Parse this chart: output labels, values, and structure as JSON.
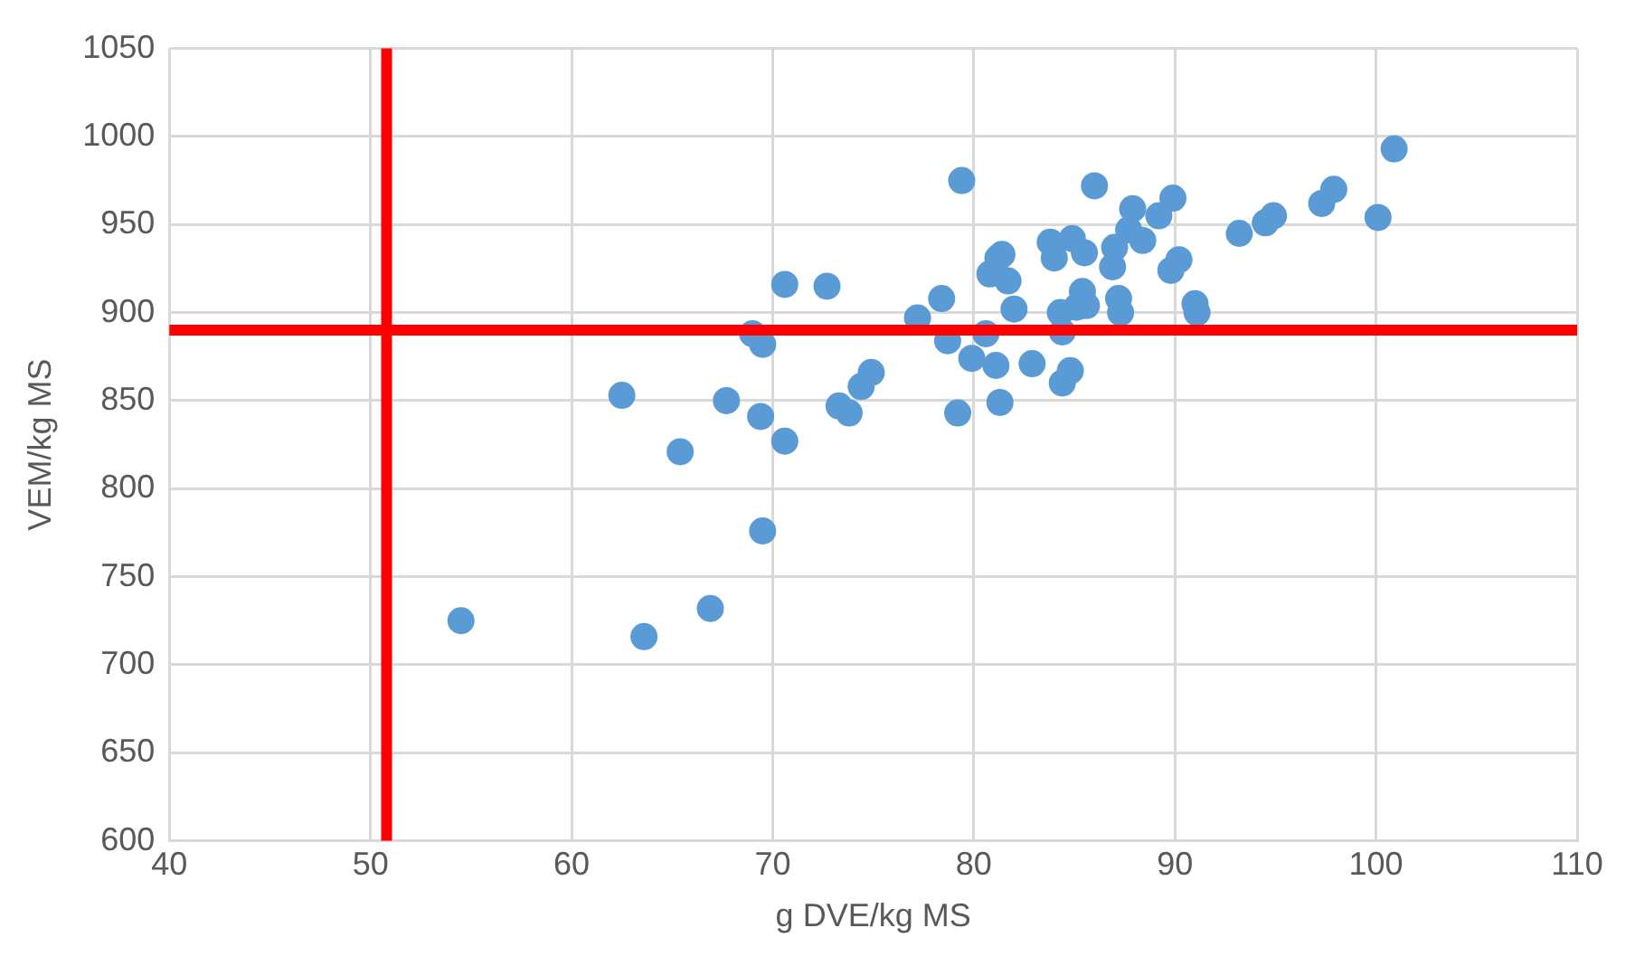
{
  "chart_data": {
    "type": "scatter",
    "xlabel": "g DVE/kg MS",
    "ylabel": "VEM/kg MS",
    "xlim": [
      40,
      110
    ],
    "xticks": [
      40,
      50,
      60,
      70,
      80,
      90,
      100,
      110
    ],
    "ylim": [
      600,
      1050
    ],
    "yticks": [
      600,
      650,
      700,
      750,
      800,
      850,
      900,
      950,
      1000,
      1050
    ],
    "grid": true,
    "legend": false,
    "marker": "circle",
    "ref_lines": [
      {
        "axis": "x",
        "value": 50.8,
        "color": "#ff0000"
      },
      {
        "axis": "y",
        "value": 890,
        "color": "#ff0000"
      }
    ],
    "series": [
      {
        "color": "#5b9bd5",
        "x": [
          54.5,
          63.6,
          66.9,
          62.5,
          65.4,
          67.7,
          69.0,
          69.5,
          69.4,
          69.5,
          70.6,
          70.6,
          72.7,
          73.3,
          73.8,
          74.4,
          74.9,
          77.2,
          78.4,
          78.7,
          79.2,
          79.4,
          79.9,
          80.6,
          80.8,
          81.2,
          81.4,
          81.1,
          81.3,
          81.7,
          82.0,
          82.9,
          83.8,
          84.0,
          84.3,
          84.4,
          84.4,
          84.8,
          84.9,
          85.1,
          85.4,
          85.5,
          85.6,
          86.0,
          86.9,
          87.0,
          87.2,
          87.3,
          87.7,
          87.9,
          88.4,
          89.2,
          89.9,
          89.8,
          90.2,
          91.0,
          91.1,
          93.2,
          94.5,
          94.9,
          97.3,
          97.9,
          100.1,
          100.9
        ],
        "values": [
          725,
          716,
          732,
          853,
          821,
          850,
          888,
          882,
          841,
          776,
          827,
          916,
          915,
          847,
          843,
          858,
          866,
          897,
          908,
          884,
          843,
          975,
          874,
          888,
          922,
          931,
          933,
          870,
          849,
          918,
          902,
          871,
          940,
          931,
          900,
          889,
          860,
          867,
          942,
          903,
          912,
          934,
          904,
          972,
          926,
          937,
          908,
          900,
          947,
          959,
          941,
          955,
          965,
          924,
          930,
          905,
          900,
          945,
          951,
          955,
          962,
          970,
          954,
          993
        ]
      }
    ]
  }
}
